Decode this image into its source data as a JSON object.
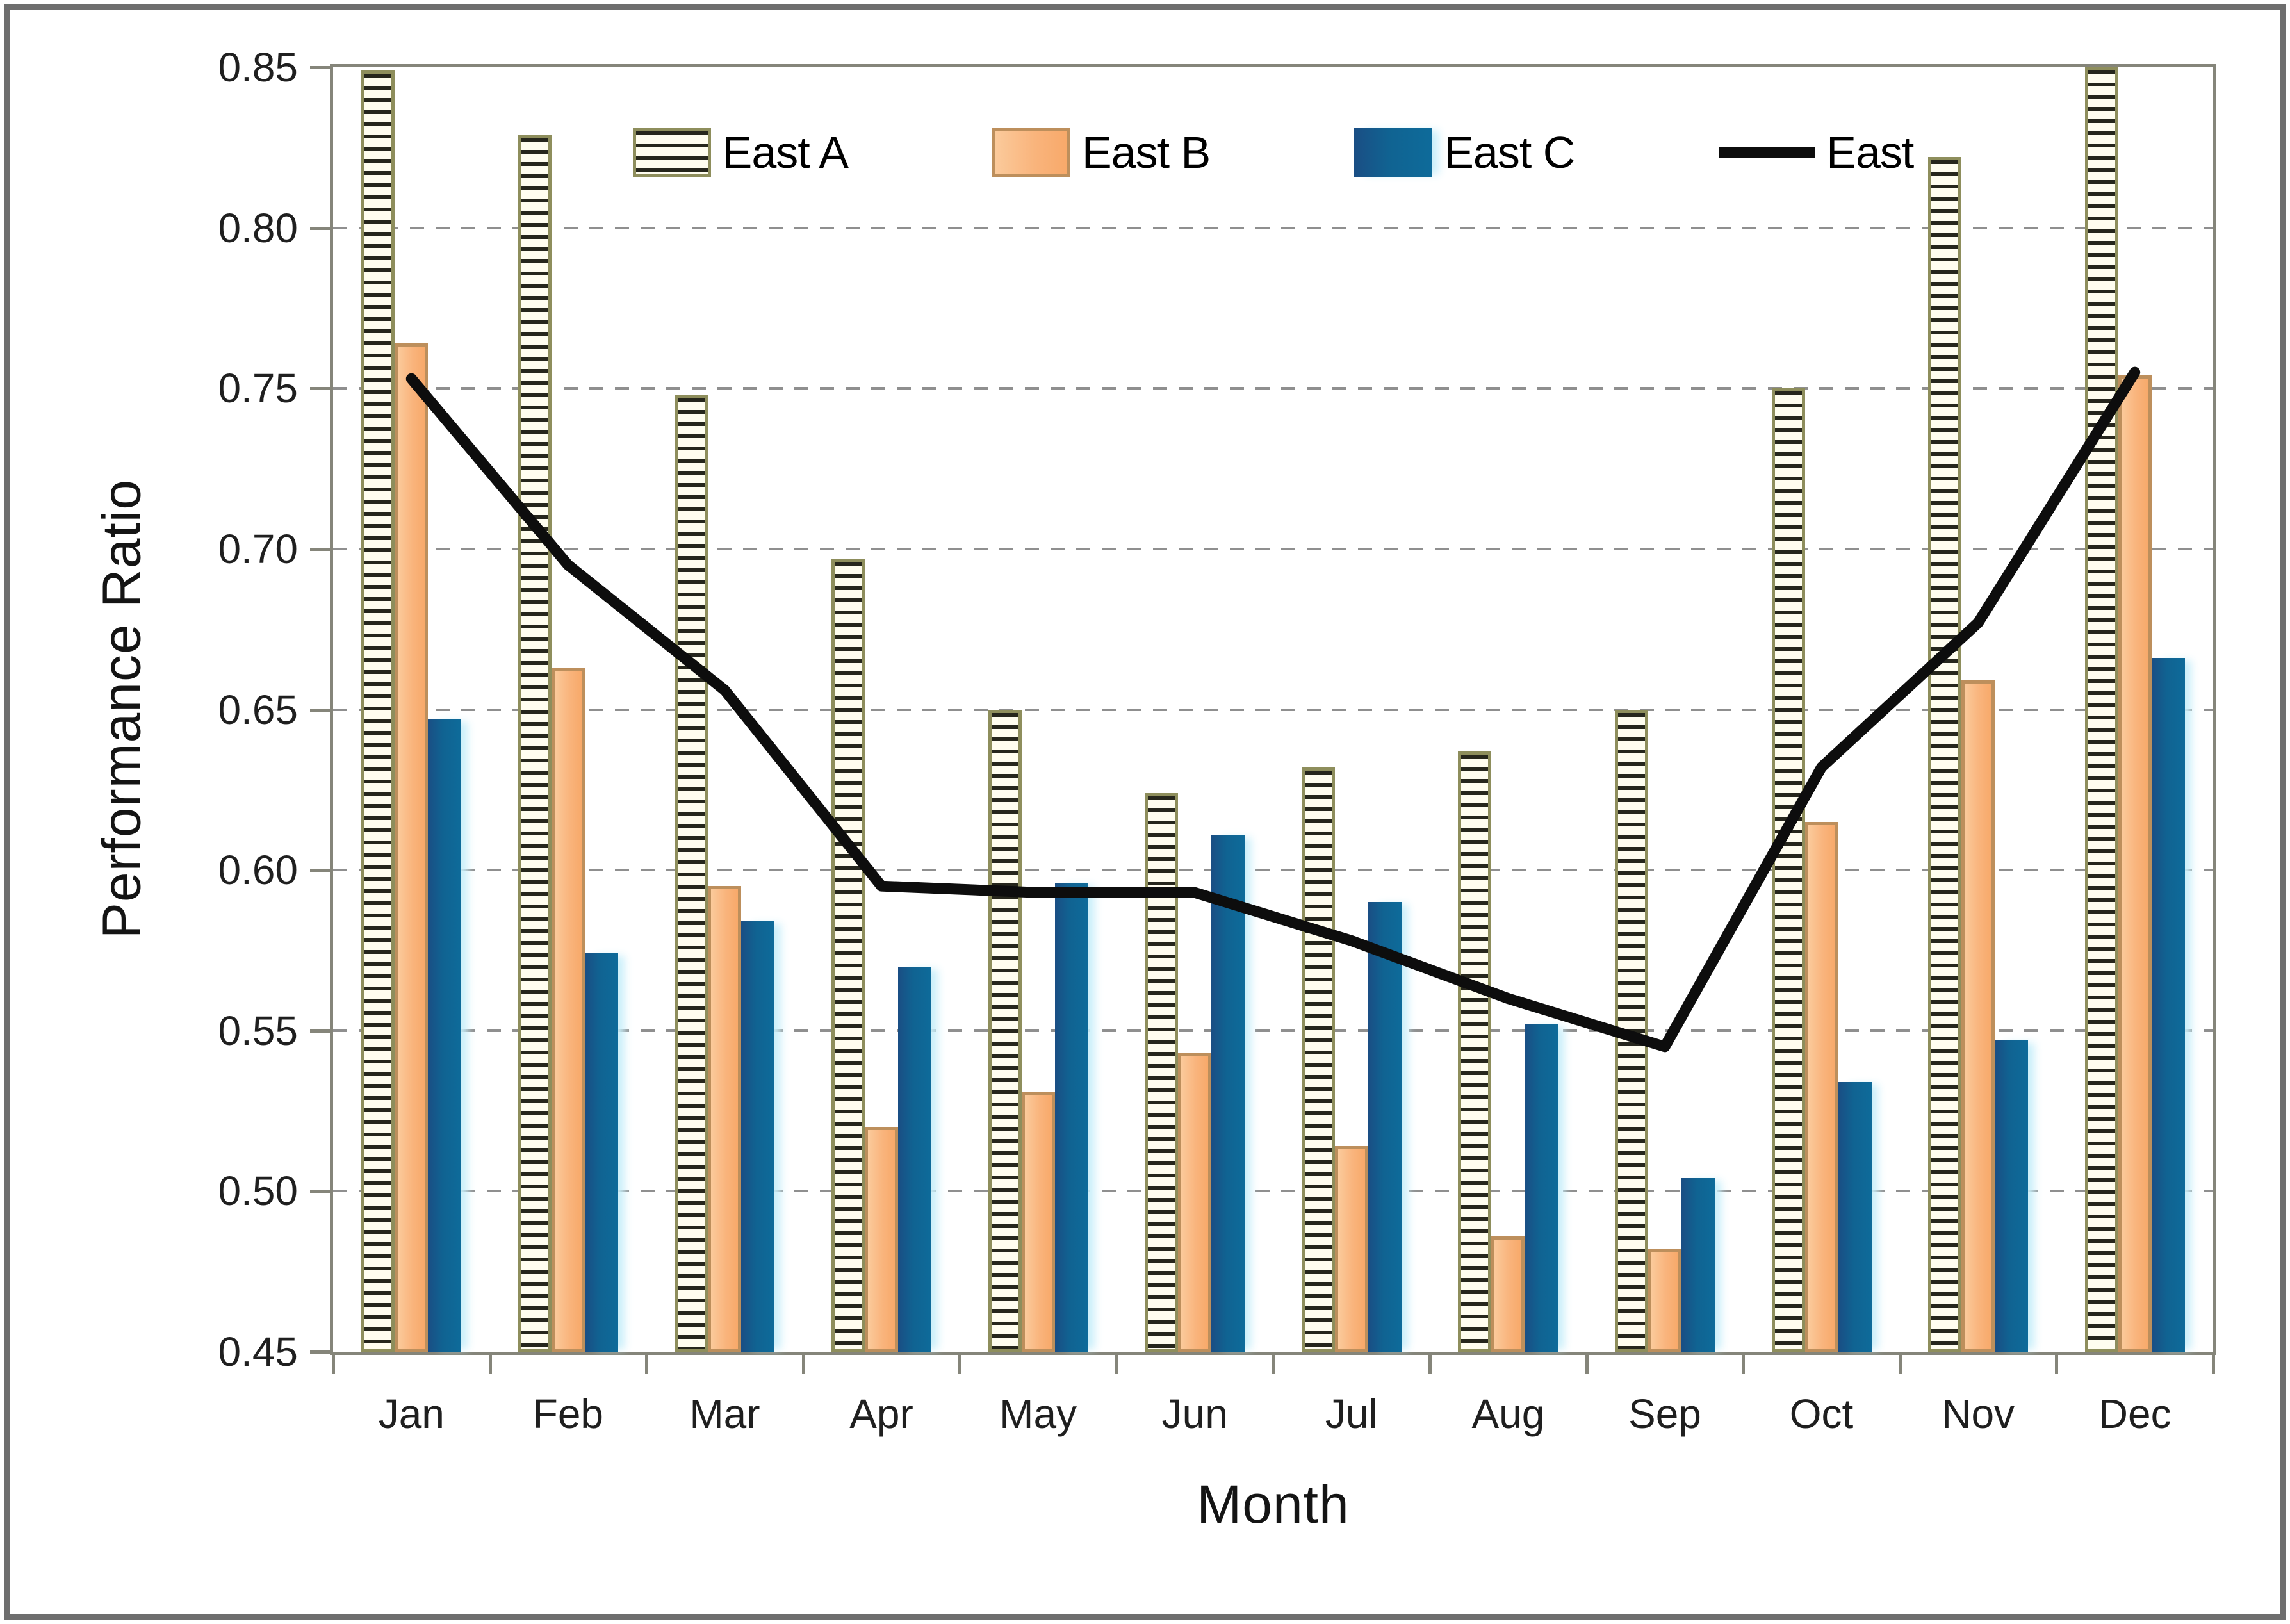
{
  "chart_data": {
    "type": "bar",
    "subtype": "grouped-bars-with-line-overlay",
    "title": "",
    "xlabel": "Month",
    "ylabel": "Performance Ratio",
    "ylim": [
      0.45,
      0.85
    ],
    "ytick_step": 0.05,
    "ytick_labels": [
      "0.85",
      "0.80",
      "0.75",
      "0.70",
      "0.65",
      "0.60",
      "0.55",
      "0.50",
      "0.45"
    ],
    "grid": "horizontal-dashed",
    "legend_position": "top-center-inside",
    "categories": [
      "Jan",
      "Feb",
      "Mar",
      "Apr",
      "May",
      "Jun",
      "Jul",
      "Aug",
      "Sep",
      "Oct",
      "Nov",
      "Dec"
    ],
    "series": [
      {
        "name": "East A",
        "type": "bar",
        "style": "hatched",
        "values": [
          0.849,
          0.829,
          0.748,
          0.697,
          0.65,
          0.624,
          0.632,
          0.637,
          0.65,
          0.75,
          0.822,
          0.85
        ]
      },
      {
        "name": "East B",
        "type": "bar",
        "style": "orange",
        "values": [
          0.764,
          0.663,
          0.595,
          0.52,
          0.531,
          0.543,
          0.514,
          0.486,
          0.482,
          0.615,
          0.659,
          0.754
        ]
      },
      {
        "name": "East C",
        "type": "bar",
        "style": "blue",
        "values": [
          0.647,
          0.574,
          0.584,
          0.57,
          0.596,
          0.611,
          0.59,
          0.552,
          0.504,
          0.534,
          0.547,
          0.666
        ]
      },
      {
        "name": "East",
        "type": "line",
        "style": "black",
        "values": [
          0.753,
          0.695,
          0.656,
          0.595,
          0.593,
          0.593,
          0.578,
          0.56,
          0.545,
          0.632,
          0.677,
          0.755
        ]
      }
    ]
  },
  "colors": {
    "east_a_fill": "#FFFDEF",
    "east_a_stripe": "#26261C",
    "east_a_border": "#8E8E5C",
    "east_b_fill": "#FAC090",
    "east_b_border": "#BD8F5C",
    "east_c_fill": "#10639A",
    "east_line": "#0D0D0D",
    "gridline": "#8F8F8F",
    "axis_frame": "#85857A",
    "outer_border": "#6E6E6E",
    "text": "#1F1F1F"
  }
}
